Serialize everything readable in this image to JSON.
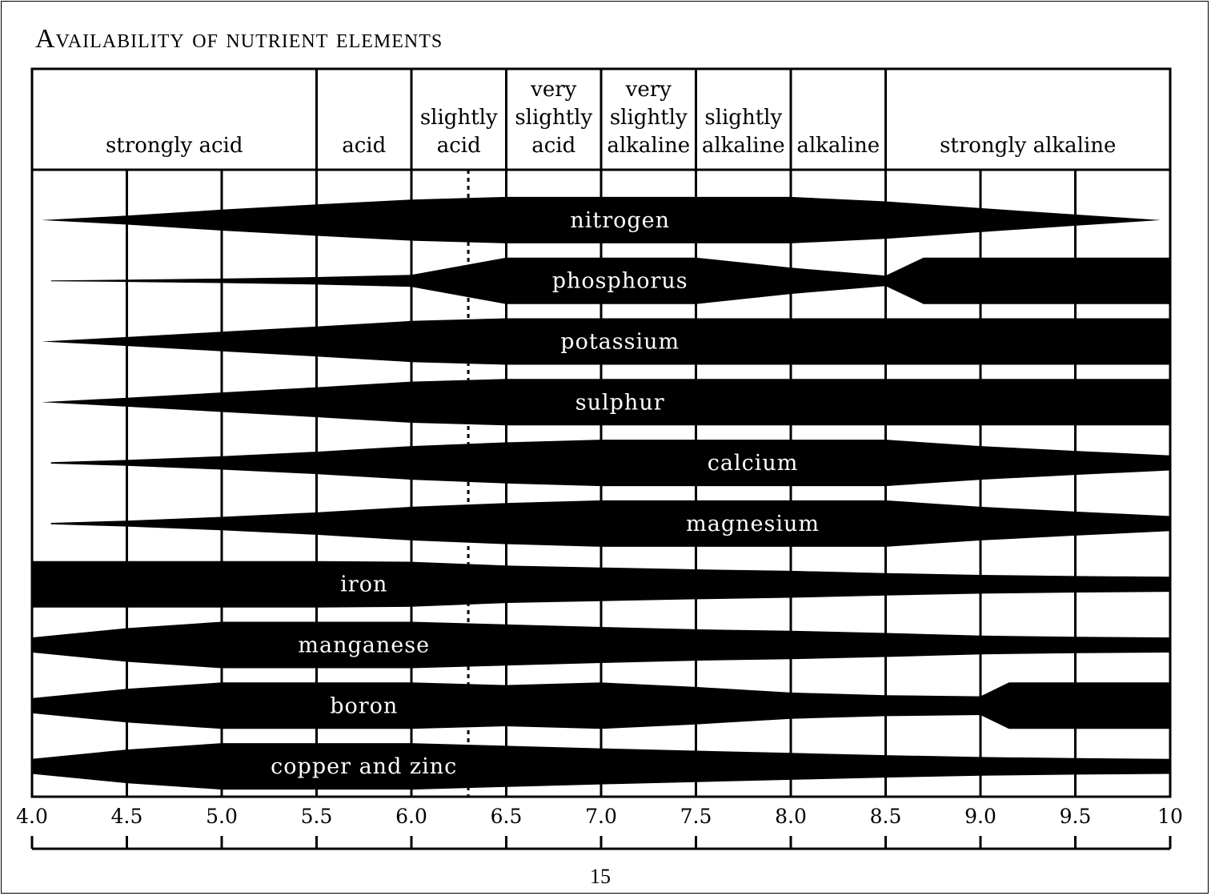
{
  "page": {
    "title": "Availability of nutrient elements",
    "page_number": "15"
  },
  "chart_data": {
    "type": "area",
    "title": "Availability of nutrient elements",
    "xlabel": "",
    "ylabel": "",
    "x_range": [
      4.0,
      10
    ],
    "grid": true,
    "legend": "none",
    "colors": {
      "band": "#000000",
      "label": "#ffffff",
      "grid": "#000000"
    },
    "x_ticks": [
      "4.0",
      "4.5",
      "5.0",
      "5.5",
      "6.0",
      "6.5",
      "7.0",
      "7.5",
      "8.0",
      "8.5",
      "9.0",
      "9.5",
      "10"
    ],
    "reaction_zones": [
      {
        "label": "strongly acid",
        "from": 4.0,
        "to": 5.5
      },
      {
        "label": "acid",
        "from": 5.5,
        "to": 6.0
      },
      {
        "label": "slightly acid",
        "from": 6.0,
        "to": 6.5
      },
      {
        "label": "very slightly acid",
        "from": 6.5,
        "to": 7.0
      },
      {
        "label": "very slightly alkaline",
        "from": 7.0,
        "to": 7.5
      },
      {
        "label": "slightly alkaline",
        "from": 7.5,
        "to": 8.0
      },
      {
        "label": "alkaline",
        "from": 8.0,
        "to": 8.5
      },
      {
        "label": "strongly alkaline",
        "from": 8.5,
        "to": 10
      }
    ],
    "optimum_ph": 6.3,
    "series": [
      {
        "name": "nitrogen",
        "label_ph": 7.1,
        "points": [
          [
            4.05,
            0
          ],
          [
            4.5,
            0.12
          ],
          [
            5.0,
            0.28
          ],
          [
            5.5,
            0.42
          ],
          [
            6.0,
            0.55
          ],
          [
            6.5,
            0.62
          ],
          [
            7.0,
            0.62
          ],
          [
            7.5,
            0.62
          ],
          [
            8.0,
            0.62
          ],
          [
            8.5,
            0.5
          ],
          [
            9.0,
            0.32
          ],
          [
            9.5,
            0.15
          ],
          [
            9.95,
            0
          ]
        ]
      },
      {
        "name": "phosphorus",
        "label_ph": 7.1,
        "points": [
          [
            4.1,
            0.01
          ],
          [
            4.5,
            0.03
          ],
          [
            5.0,
            0.06
          ],
          [
            5.5,
            0.1
          ],
          [
            6.0,
            0.16
          ],
          [
            6.5,
            0.62
          ],
          [
            7.0,
            0.62
          ],
          [
            7.5,
            0.62
          ],
          [
            8.0,
            0.35
          ],
          [
            8.5,
            0.14
          ],
          [
            8.7,
            0.62
          ],
          [
            9.0,
            0.62
          ],
          [
            9.5,
            0.62
          ],
          [
            10,
            0.62
          ]
        ]
      },
      {
        "name": "potassium",
        "label_ph": 7.1,
        "points": [
          [
            4.05,
            0
          ],
          [
            4.5,
            0.12
          ],
          [
            5.0,
            0.26
          ],
          [
            5.5,
            0.4
          ],
          [
            6.0,
            0.55
          ],
          [
            6.5,
            0.62
          ],
          [
            7.0,
            0.62
          ],
          [
            7.5,
            0.62
          ],
          [
            8.0,
            0.62
          ],
          [
            8.5,
            0.62
          ],
          [
            9.0,
            0.62
          ],
          [
            9.5,
            0.62
          ],
          [
            10,
            0.62
          ]
        ]
      },
      {
        "name": "sulphur",
        "label_ph": 7.1,
        "points": [
          [
            4.05,
            0
          ],
          [
            4.5,
            0.12
          ],
          [
            5.0,
            0.26
          ],
          [
            5.5,
            0.4
          ],
          [
            6.0,
            0.55
          ],
          [
            6.5,
            0.62
          ],
          [
            7.0,
            0.62
          ],
          [
            7.5,
            0.62
          ],
          [
            8.0,
            0.62
          ],
          [
            8.5,
            0.62
          ],
          [
            9.0,
            0.62
          ],
          [
            9.5,
            0.62
          ],
          [
            10,
            0.62
          ]
        ]
      },
      {
        "name": "calcium",
        "label_ph": 7.8,
        "points": [
          [
            4.1,
            0.02
          ],
          [
            4.5,
            0.08
          ],
          [
            5.0,
            0.18
          ],
          [
            5.5,
            0.3
          ],
          [
            6.0,
            0.45
          ],
          [
            6.5,
            0.55
          ],
          [
            7.0,
            0.62
          ],
          [
            7.5,
            0.62
          ],
          [
            8.0,
            0.62
          ],
          [
            8.5,
            0.62
          ],
          [
            9.0,
            0.45
          ],
          [
            9.5,
            0.32
          ],
          [
            10,
            0.2
          ]
        ]
      },
      {
        "name": "magnesium",
        "label_ph": 7.8,
        "points": [
          [
            4.1,
            0.02
          ],
          [
            4.5,
            0.08
          ],
          [
            5.0,
            0.18
          ],
          [
            5.5,
            0.3
          ],
          [
            6.0,
            0.45
          ],
          [
            6.5,
            0.55
          ],
          [
            7.0,
            0.62
          ],
          [
            7.5,
            0.62
          ],
          [
            8.0,
            0.62
          ],
          [
            8.5,
            0.62
          ],
          [
            9.0,
            0.45
          ],
          [
            9.5,
            0.32
          ],
          [
            10,
            0.2
          ]
        ]
      },
      {
        "name": "iron",
        "label_ph": 5.75,
        "points": [
          [
            4.0,
            0.62
          ],
          [
            4.5,
            0.62
          ],
          [
            5.0,
            0.62
          ],
          [
            5.5,
            0.62
          ],
          [
            6.0,
            0.6
          ],
          [
            6.5,
            0.5
          ],
          [
            7.0,
            0.45
          ],
          [
            7.5,
            0.4
          ],
          [
            8.0,
            0.36
          ],
          [
            8.5,
            0.3
          ],
          [
            9.0,
            0.25
          ],
          [
            9.5,
            0.22
          ],
          [
            10,
            0.2
          ]
        ]
      },
      {
        "name": "manganese",
        "label_ph": 5.75,
        "points": [
          [
            4.0,
            0.2
          ],
          [
            4.5,
            0.45
          ],
          [
            5.0,
            0.62
          ],
          [
            5.5,
            0.62
          ],
          [
            6.0,
            0.62
          ],
          [
            6.5,
            0.55
          ],
          [
            7.0,
            0.48
          ],
          [
            7.5,
            0.42
          ],
          [
            8.0,
            0.38
          ],
          [
            8.5,
            0.32
          ],
          [
            9.0,
            0.25
          ],
          [
            9.5,
            0.22
          ],
          [
            10,
            0.2
          ]
        ]
      },
      {
        "name": "boron",
        "label_ph": 5.75,
        "points": [
          [
            4.0,
            0.2
          ],
          [
            4.5,
            0.45
          ],
          [
            5.0,
            0.62
          ],
          [
            5.5,
            0.62
          ],
          [
            6.0,
            0.62
          ],
          [
            6.5,
            0.55
          ],
          [
            7.0,
            0.62
          ],
          [
            7.5,
            0.5
          ],
          [
            8.0,
            0.35
          ],
          [
            8.5,
            0.28
          ],
          [
            9.0,
            0.25
          ],
          [
            9.15,
            0.62
          ],
          [
            9.5,
            0.62
          ],
          [
            10,
            0.62
          ]
        ]
      },
      {
        "name": "copper and zinc",
        "label_ph": 5.75,
        "points": [
          [
            4.0,
            0.2
          ],
          [
            4.5,
            0.45
          ],
          [
            5.0,
            0.62
          ],
          [
            5.5,
            0.62
          ],
          [
            6.0,
            0.62
          ],
          [
            6.5,
            0.55
          ],
          [
            7.0,
            0.48
          ],
          [
            7.5,
            0.42
          ],
          [
            8.0,
            0.36
          ],
          [
            8.5,
            0.3
          ],
          [
            9.0,
            0.25
          ],
          [
            9.5,
            0.22
          ],
          [
            10,
            0.2
          ]
        ]
      }
    ]
  }
}
